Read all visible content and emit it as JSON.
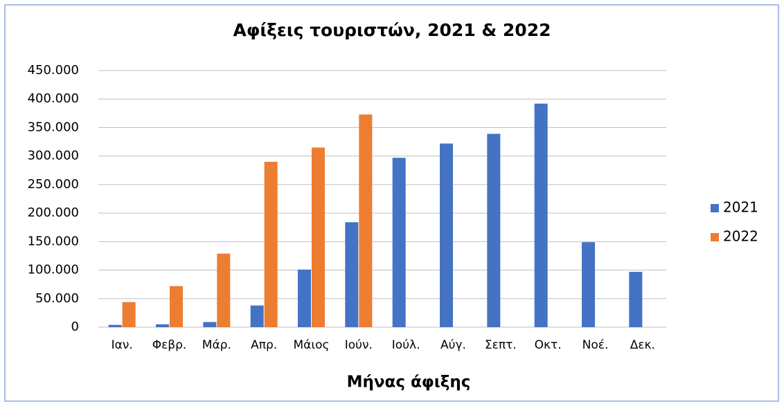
{
  "chart_data": {
    "type": "bar",
    "title": "Αφίξεις τουριστών, 2021 & 2022",
    "x_label": "Μήνας άφιξης",
    "categories": [
      "Ιαν.",
      "Φεβρ.",
      "Μάρ.",
      "Απρ.",
      "Μάιος",
      "Ιούν.",
      "Ιούλ.",
      "Αύγ.",
      "Σεπτ.",
      "Οκτ.",
      "Νοέ.",
      "Δεκ."
    ],
    "series": [
      {
        "name": "2021",
        "color": "#4472c4",
        "values": [
          4000,
          5000,
          9000,
          38000,
          101000,
          184000,
          297000,
          322000,
          339000,
          392000,
          149000,
          97000
        ]
      },
      {
        "name": "2022",
        "color": "#ed7d31",
        "values": [
          44000,
          72000,
          129000,
          290000,
          315000,
          373000,
          null,
          null,
          null,
          null,
          null,
          null
        ]
      }
    ],
    "ylim": [
      0,
      450000
    ],
    "yticks": [
      0,
      {
        "value": 50000,
        "label": "50.000"
      },
      {
        "value": 100000,
        "label": "100.000"
      },
      {
        "value": 150000,
        "label": "150.000"
      },
      {
        "value": 200000,
        "label": "200.000"
      },
      {
        "value": 250000,
        "label": "250.000"
      },
      {
        "value": 300000,
        "label": "300.000"
      },
      {
        "value": 350000,
        "label": "350.000"
      },
      {
        "value": 400000,
        "label": "400.000"
      },
      {
        "value": 450000,
        "label": "450.000"
      }
    ],
    "grid": true,
    "legend": "right"
  }
}
